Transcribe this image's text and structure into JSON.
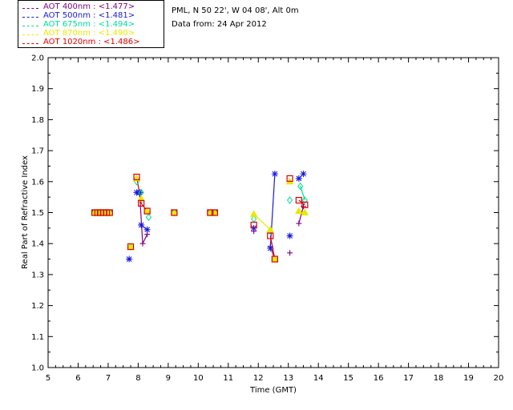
{
  "header": {
    "site": "PML, N 50 22', W 04 08', Alt 0m",
    "date": "Data from: 24 Apr 2012"
  },
  "legend": [
    {
      "label": "AOT  400nm : <1.477>",
      "color": "#7f007f"
    },
    {
      "label": "AOT  500nm : <1.481>",
      "color": "#1a1adc"
    },
    {
      "label": "AOT  675nm : <1.494>",
      "color": "#00dc9a"
    },
    {
      "label": "AOT  870nm : <1.490>",
      "color": "#e8e800"
    },
    {
      "label": "AOT 1020nm : <1.486>",
      "color": "#dc0000"
    }
  ],
  "chart_data": {
    "type": "scatter",
    "xlabel": "Time (GMT)",
    "ylabel": "Real Part of Refractive Index",
    "xlim": [
      5,
      20
    ],
    "ylim": [
      1.0,
      2.0
    ],
    "xticks": [
      "5",
      "6",
      "7",
      "8",
      "9",
      "10",
      "11",
      "12",
      "13",
      "14",
      "15",
      "16",
      "17",
      "18",
      "19",
      "20"
    ],
    "yticks": [
      "1.0",
      "1.1",
      "1.2",
      "1.3",
      "1.4",
      "1.5",
      "1.6",
      "1.7",
      "1.8",
      "1.9",
      "2.0"
    ],
    "series": [
      {
        "name": "AOT  400nm",
        "color": "#7f007f",
        "marker": "plus",
        "x": [
          6.55,
          6.65,
          6.75,
          6.85,
          6.95,
          7.05,
          7.75,
          7.95,
          8.05,
          8.15,
          8.3,
          9.2,
          10.4,
          10.55,
          11.85,
          12.4,
          12.55,
          13.05,
          13.35,
          13.5
        ],
        "y": [
          1.5,
          1.5,
          1.5,
          1.5,
          1.5,
          1.5,
          1.39,
          1.61,
          1.56,
          1.4,
          1.43,
          1.5,
          1.5,
          1.5,
          1.44,
          1.39,
          1.35,
          1.37,
          1.465,
          1.52
        ],
        "lines": [
          [
            8.05,
            8.15,
            8.3
          ],
          [
            12.4,
            12.55
          ],
          [
            13.35,
            13.5
          ]
        ]
      },
      {
        "name": "AOT  500nm",
        "color": "#1a1adc",
        "marker": "asterisk",
        "x": [
          6.55,
          6.65,
          6.75,
          6.85,
          6.95,
          7.05,
          7.7,
          7.95,
          8.05,
          8.1,
          8.3,
          9.2,
          10.4,
          10.55,
          11.85,
          12.4,
          12.55,
          13.05,
          13.35,
          13.5
        ],
        "y": [
          1.5,
          1.5,
          1.5,
          1.5,
          1.5,
          1.5,
          1.35,
          1.565,
          1.565,
          1.46,
          1.445,
          1.5,
          1.5,
          1.5,
          1.45,
          1.385,
          1.625,
          1.425,
          1.61,
          1.625
        ],
        "lines": [
          [
            7.95,
            8.05
          ],
          [
            8.1,
            8.3
          ],
          [
            12.4,
            12.55
          ],
          [
            13.35,
            13.5
          ]
        ]
      },
      {
        "name": "AOT  675nm",
        "color": "#00dc9a",
        "marker": "diamond",
        "x": [
          6.55,
          6.65,
          6.75,
          6.85,
          6.95,
          7.05,
          7.75,
          7.95,
          8.1,
          8.35,
          9.2,
          10.4,
          10.55,
          11.85,
          12.4,
          12.55,
          13.05,
          13.4,
          13.55
        ],
        "y": [
          1.5,
          1.5,
          1.5,
          1.5,
          1.5,
          1.5,
          1.39,
          1.6,
          1.565,
          1.485,
          1.5,
          1.5,
          1.5,
          1.48,
          1.44,
          1.35,
          1.54,
          1.585,
          1.54
        ],
        "lines": [
          [
            13.4,
            13.55
          ]
        ]
      },
      {
        "name": "AOT  870nm",
        "color": "#e8e800",
        "marker": "triangle",
        "x": [
          6.55,
          6.65,
          6.75,
          6.85,
          6.95,
          7.05,
          7.75,
          7.95,
          8.1,
          8.3,
          9.2,
          10.4,
          10.55,
          11.85,
          12.4,
          12.55,
          13.05,
          13.35,
          13.55
        ],
        "y": [
          1.5,
          1.5,
          1.5,
          1.5,
          1.5,
          1.5,
          1.39,
          1.61,
          1.545,
          1.505,
          1.5,
          1.5,
          1.5,
          1.495,
          1.445,
          1.35,
          1.6,
          1.505,
          1.5
        ],
        "lines": [
          [
            11.85,
            12.4
          ]
        ]
      },
      {
        "name": "AOT 1020nm",
        "color": "#dc0000",
        "marker": "square",
        "x": [
          6.55,
          6.65,
          6.75,
          6.85,
          6.95,
          7.05,
          7.75,
          7.95,
          8.1,
          8.3,
          9.2,
          10.4,
          10.55,
          11.85,
          12.4,
          12.55,
          13.05,
          13.35,
          13.55
        ],
        "y": [
          1.5,
          1.5,
          1.5,
          1.5,
          1.5,
          1.5,
          1.39,
          1.615,
          1.53,
          1.505,
          1.5,
          1.5,
          1.5,
          1.46,
          1.425,
          1.35,
          1.61,
          1.54,
          1.525
        ],
        "lines": [
          [
            7.95,
            8.1,
            8.3
          ],
          [
            12.4,
            12.55
          ],
          [
            13.35,
            13.55
          ]
        ]
      }
    ]
  }
}
